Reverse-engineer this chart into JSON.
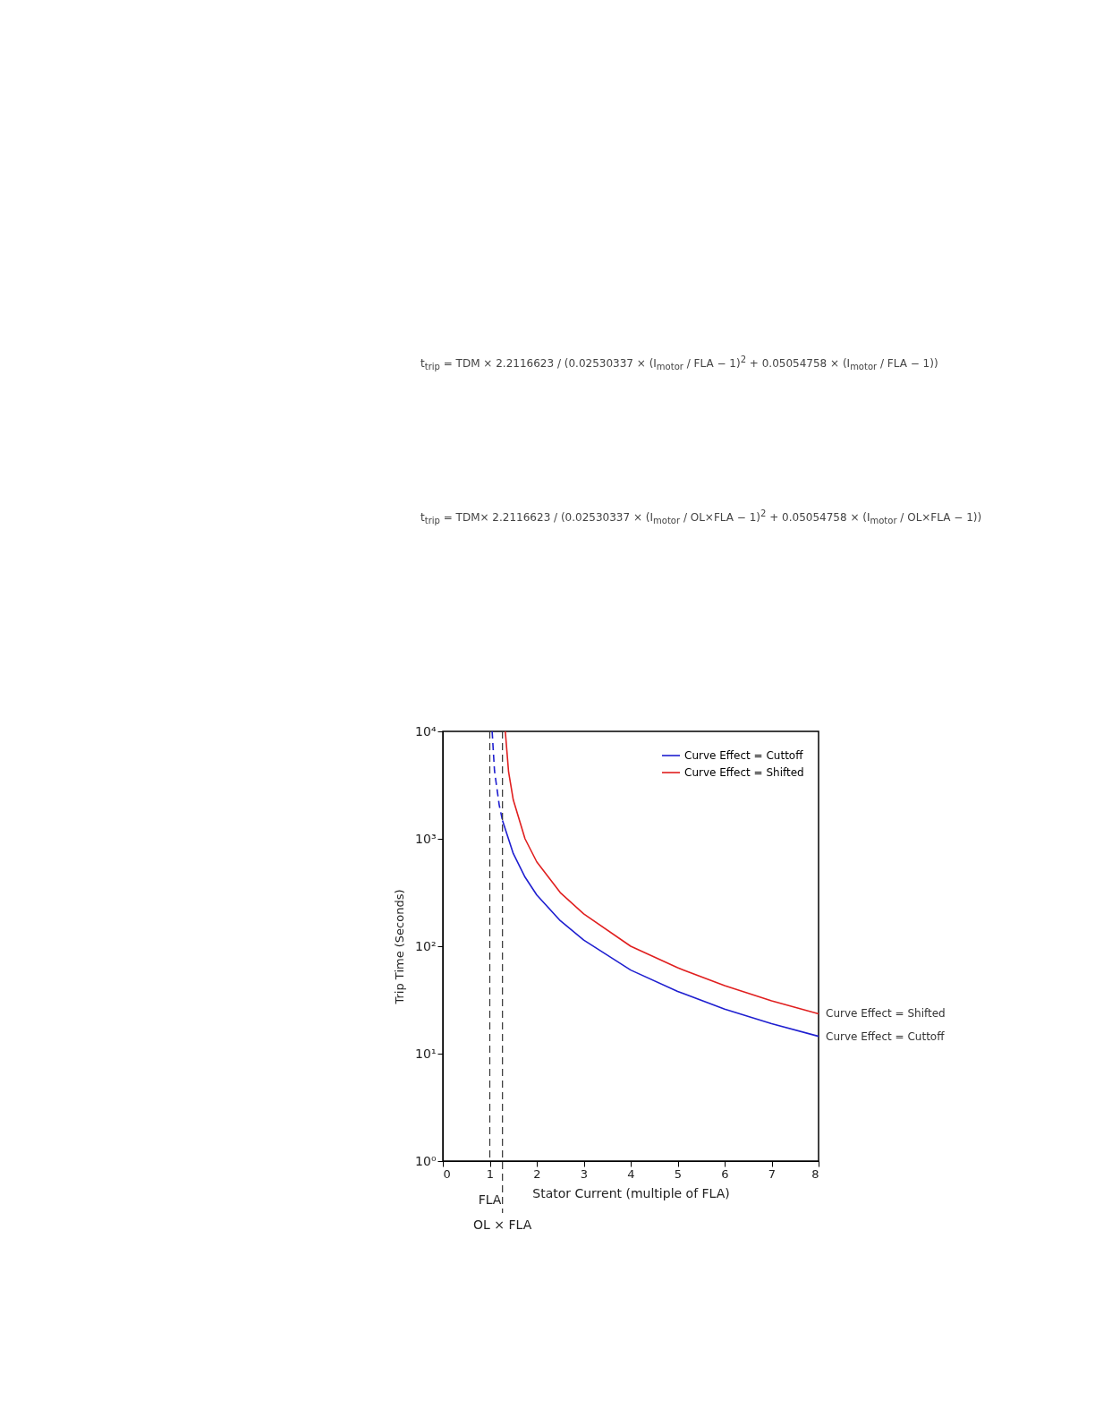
{
  "chart_data": {
    "type": "line",
    "xlabel": "Stator Current (multiple of FLA)",
    "ylabel": "Trip Time (Seconds)",
    "x": [
      1.27,
      1.5,
      1.75,
      2,
      2.5,
      3,
      4,
      5,
      6,
      7,
      8
    ],
    "series": [
      {
        "name": "Curve Effect = Cuttoff",
        "color": "#1f1fd0",
        "values": [
          1480,
          730,
          440,
          300,
          173,
          114,
          60,
          38,
          26,
          19,
          14.5
        ]
      },
      {
        "name": "Curve Effect = Shifted",
        "color": "#e01f1f",
        "x": [
          1.33,
          1.4,
          1.5,
          1.75,
          2,
          2.5,
          3,
          4,
          5,
          6,
          7,
          8
        ],
        "values": [
          10000,
          4200,
          2300,
          1000,
          610,
          316,
          200,
          100,
          63,
          43,
          31,
          23.5
        ]
      },
      {
        "color": "#1f1fd0",
        "line_style": "dashed",
        "x": [
          1.05,
          1.1,
          1.2,
          1.27
        ],
        "values": [
          10000,
          4300,
          2070,
          1480
        ]
      }
    ],
    "xlim": [
      0,
      8
    ],
    "xticks": [
      0,
      1,
      2,
      3,
      4,
      5,
      6,
      7,
      8
    ],
    "ylim": [
      1,
      10000
    ],
    "yticks": [
      {
        "value": 1,
        "label": "10⁰"
      },
      {
        "value": 10,
        "label": "10¹"
      },
      {
        "value": 100,
        "label": "10²"
      },
      {
        "value": 1000,
        "label": "10³"
      },
      {
        "value": 10000,
        "label": "10⁴"
      }
    ],
    "log": "y",
    "grid": false,
    "legend": "top right",
    "ref_lines": [
      {
        "axis": "x",
        "value": 1,
        "label": "FLA",
        "color": "#333333",
        "line_style": "dashed"
      },
      {
        "axis": "x",
        "value": 1.27,
        "label": "OL × FLA",
        "color": "#333333",
        "line_style": "dashed"
      }
    ],
    "annotations": [
      "t$_{trip}$ = TDM × 2.2116623 / (0.02530337 × (I$_{motor}$ / FLA − 1)$^{2}$ + 0.05054758 × (I$_{motor}$ / FLA − 1))",
      "t$_{trip}$ = TDM× 2.2116623 / (0.02530337 × (I$_{motor}$ / OL×FLA − 1)$^{2}$ + 0.05054758 × (I$_{motor}$ / OL×FLA − 1))",
      {
        "text": "Curve Effect = Shifted",
        "x": 8,
        "y": 23.5
      },
      {
        "text": "Curve Effect = Cuttoff",
        "x": 8,
        "y": 14.5
      }
    ]
  }
}
